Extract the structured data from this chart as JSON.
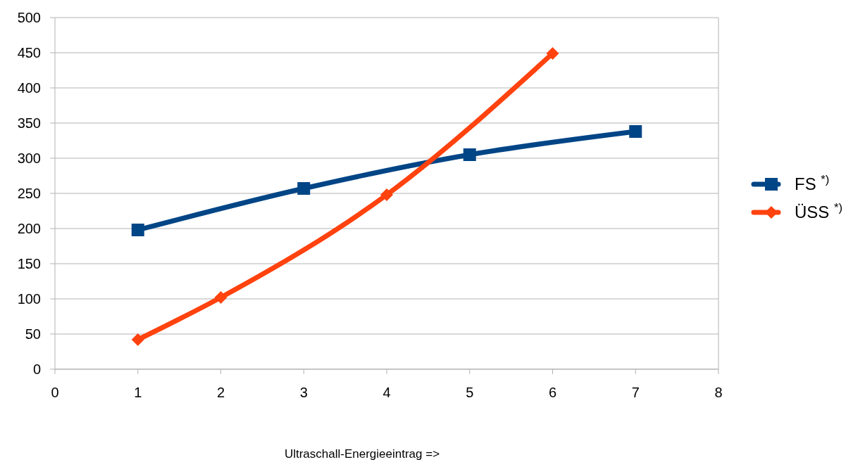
{
  "chart_data": {
    "type": "line",
    "xlabel": "Ultraschall-Energieeintrag =>",
    "xlim": [
      0,
      8
    ],
    "xticks": [
      0,
      1,
      2,
      3,
      4,
      5,
      6,
      7,
      8
    ],
    "ylim": [
      0,
      500
    ],
    "yticks": [
      0,
      50,
      100,
      150,
      200,
      250,
      300,
      350,
      400,
      450,
      500
    ],
    "grid": "y",
    "legend": "right",
    "series": [
      {
        "name": "FS $^{*)}$",
        "color": "#004586",
        "marker": "square",
        "x": [
          1,
          3,
          5,
          7
        ],
        "values": [
          198,
          257,
          305,
          338
        ]
      },
      {
        "name": "ÜSS $^{*)}$",
        "color": "#ff420e",
        "marker": "diamond",
        "x": [
          1,
          2,
          4,
          6
        ],
        "values": [
          42,
          102,
          248,
          449
        ]
      }
    ]
  }
}
